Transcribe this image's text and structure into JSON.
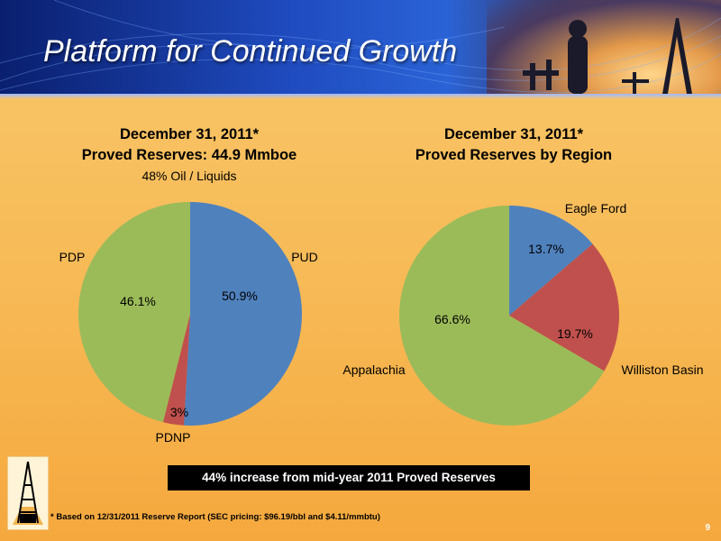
{
  "slide": {
    "title": "Platform for Continued Growth",
    "highlight": "44% increase from mid-year 2011 Proved Reserves",
    "footnote": "* Based on 12/31/2011 Reserve Report (SEC pricing: $96.19/bbl and $4.11/mmbtu)",
    "page_number": "9"
  },
  "chart_data": [
    {
      "type": "pie",
      "title": "December 31, 2011*",
      "subtitle": "Proved Reserves: 44.9 Mmboe",
      "note": "48% Oil / Liquids",
      "slices": [
        {
          "label": "PUD",
          "value": 50.9,
          "value_label": "50.9%",
          "color": "#4f81bd"
        },
        {
          "label": "PDNP",
          "value": 3.0,
          "value_label": "3%",
          "color": "#c0504d"
        },
        {
          "label": "PDP",
          "value": 46.1,
          "value_label": "46.1%",
          "color": "#9bbb59"
        }
      ]
    },
    {
      "type": "pie",
      "title": "December 31, 2011*",
      "subtitle": "Proved Reserves by Region",
      "slices": [
        {
          "label": "Eagle Ford",
          "value": 13.7,
          "value_label": "13.7%",
          "color": "#4f81bd"
        },
        {
          "label": "Williston Basin",
          "value": 19.7,
          "value_label": "19.7%",
          "color": "#c0504d"
        },
        {
          "label": "Appalachia",
          "value": 66.6,
          "value_label": "66.6%",
          "color": "#9bbb59"
        }
      ]
    }
  ]
}
